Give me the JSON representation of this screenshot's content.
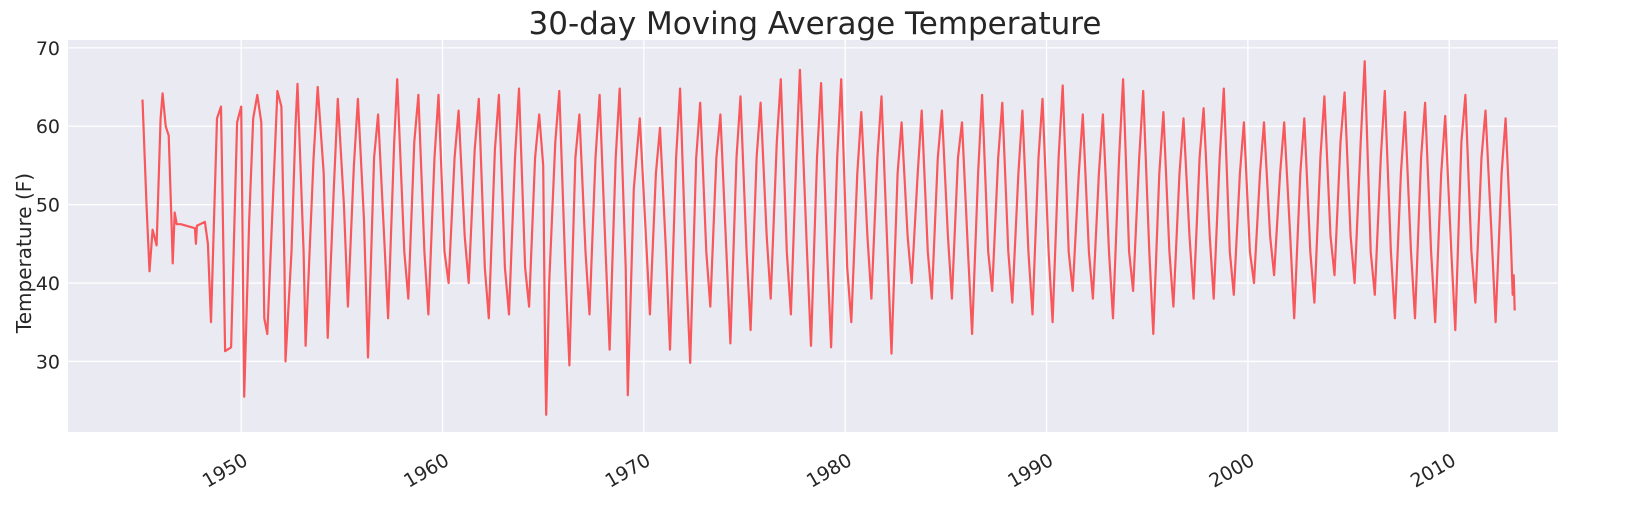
{
  "chart_data": {
    "type": "line",
    "title": "30-day Moving Average Temperature",
    "xlabel": "",
    "ylabel": "Temperature (F)",
    "xlim": [
      1941.4,
      2015.4
    ],
    "ylim": [
      21,
      71
    ],
    "x_ticks": [
      1950,
      1960,
      1970,
      1980,
      1990,
      2000,
      2010
    ],
    "x_tick_labels": [
      "1950",
      "1960",
      "1970",
      "1980",
      "1990",
      "2000",
      "2010"
    ],
    "y_ticks": [
      30,
      40,
      50,
      60,
      70
    ],
    "y_tick_labels": [
      "30",
      "40",
      "50",
      "60",
      "70"
    ],
    "grid": true,
    "background": "#eaeaf2",
    "line_color": "#f8585b",
    "series": [
      {
        "name": "",
        "points": [
          [
            1945.1,
            63.4
          ],
          [
            1945.3,
            50.0
          ],
          [
            1945.45,
            41.5
          ],
          [
            1945.6,
            46.8
          ],
          [
            1945.8,
            44.8
          ],
          [
            1946.0,
            61.0
          ],
          [
            1946.1,
            64.2
          ],
          [
            1946.25,
            60.0
          ],
          [
            1946.4,
            58.8
          ],
          [
            1946.55,
            47.0
          ],
          [
            1946.6,
            42.5
          ],
          [
            1946.7,
            49.0
          ],
          [
            1946.8,
            47.5
          ],
          [
            1947.0,
            47.5
          ],
          [
            1947.7,
            47.0
          ],
          [
            1947.75,
            45.0
          ],
          [
            1947.8,
            47.3
          ],
          [
            1948.2,
            47.8
          ],
          [
            1948.35,
            45.0
          ],
          [
            1948.5,
            35.0
          ],
          [
            1948.8,
            61.0
          ],
          [
            1949.0,
            62.5
          ],
          [
            1949.2,
            31.3
          ],
          [
            1949.5,
            31.8
          ],
          [
            1949.8,
            60.5
          ],
          [
            1950.0,
            62.5
          ],
          [
            1950.1,
            38.0
          ],
          [
            1950.15,
            25.5
          ],
          [
            1950.4,
            48.0
          ],
          [
            1950.6,
            61.0
          ],
          [
            1950.8,
            64.0
          ],
          [
            1951.0,
            60.5
          ],
          [
            1951.15,
            35.5
          ],
          [
            1951.3,
            33.5
          ],
          [
            1951.5,
            46.0
          ],
          [
            1951.8,
            64.5
          ],
          [
            1952.0,
            62.5
          ],
          [
            1952.15,
            42.0
          ],
          [
            1952.2,
            30.0
          ],
          [
            1952.5,
            44.0
          ],
          [
            1952.7,
            60.0
          ],
          [
            1952.8,
            65.4
          ],
          [
            1953.1,
            44.0
          ],
          [
            1953.2,
            32.0
          ],
          [
            1953.6,
            56.0
          ],
          [
            1953.8,
            65.0
          ],
          [
            1954.1,
            54.0
          ],
          [
            1954.3,
            33.0
          ],
          [
            1954.6,
            52.0
          ],
          [
            1954.8,
            63.5
          ],
          [
            1955.1,
            50.0
          ],
          [
            1955.3,
            37.0
          ],
          [
            1955.6,
            55.0
          ],
          [
            1955.8,
            63.5
          ],
          [
            1956.1,
            48.0
          ],
          [
            1956.3,
            30.5
          ],
          [
            1956.6,
            56.0
          ],
          [
            1956.8,
            61.5
          ],
          [
            1957.1,
            46.0
          ],
          [
            1957.3,
            35.5
          ],
          [
            1957.6,
            58.0
          ],
          [
            1957.75,
            66.0
          ],
          [
            1958.1,
            44.0
          ],
          [
            1958.3,
            38.0
          ],
          [
            1958.6,
            58.0
          ],
          [
            1958.8,
            64.0
          ],
          [
            1959.1,
            44.0
          ],
          [
            1959.3,
            36.0
          ],
          [
            1959.6,
            56.0
          ],
          [
            1959.8,
            64.0
          ],
          [
            1960.1,
            44.0
          ],
          [
            1960.3,
            40.0
          ],
          [
            1960.6,
            56.0
          ],
          [
            1960.8,
            62.0
          ],
          [
            1961.1,
            46.0
          ],
          [
            1961.3,
            40.0
          ],
          [
            1961.6,
            57.0
          ],
          [
            1961.8,
            63.5
          ],
          [
            1962.1,
            42.0
          ],
          [
            1962.3,
            35.5
          ],
          [
            1962.6,
            57.0
          ],
          [
            1962.8,
            64.0
          ],
          [
            1963.1,
            42.0
          ],
          [
            1963.3,
            36.0
          ],
          [
            1963.6,
            56.0
          ],
          [
            1963.8,
            64.8
          ],
          [
            1964.1,
            42.0
          ],
          [
            1964.3,
            37.0
          ],
          [
            1964.6,
            56.0
          ],
          [
            1964.8,
            61.5
          ],
          [
            1965.0,
            55.0
          ],
          [
            1965.1,
            30.0
          ],
          [
            1965.15,
            23.2
          ],
          [
            1965.3,
            40.0
          ],
          [
            1965.6,
            58.0
          ],
          [
            1965.8,
            64.5
          ],
          [
            1966.1,
            42.0
          ],
          [
            1966.3,
            29.5
          ],
          [
            1966.6,
            56.0
          ],
          [
            1966.8,
            61.5
          ],
          [
            1967.1,
            44.0
          ],
          [
            1967.3,
            36.0
          ],
          [
            1967.6,
            56.0
          ],
          [
            1967.8,
            64.0
          ],
          [
            1968.1,
            44.0
          ],
          [
            1968.3,
            31.5
          ],
          [
            1968.6,
            56.0
          ],
          [
            1968.8,
            64.8
          ],
          [
            1969.1,
            42.0
          ],
          [
            1969.2,
            25.7
          ],
          [
            1969.5,
            52.0
          ],
          [
            1969.8,
            61.0
          ],
          [
            1970.1,
            46.0
          ],
          [
            1970.3,
            36.0
          ],
          [
            1970.6,
            54.0
          ],
          [
            1970.8,
            59.8
          ],
          [
            1971.1,
            44.0
          ],
          [
            1971.3,
            31.5
          ],
          [
            1971.6,
            56.0
          ],
          [
            1971.8,
            64.8
          ],
          [
            1972.1,
            42.0
          ],
          [
            1972.3,
            29.8
          ],
          [
            1972.6,
            56.0
          ],
          [
            1972.8,
            63.0
          ],
          [
            1973.1,
            44.0
          ],
          [
            1973.3,
            37.0
          ],
          [
            1973.6,
            56.0
          ],
          [
            1973.8,
            61.5
          ],
          [
            1974.1,
            44.0
          ],
          [
            1974.3,
            32.3
          ],
          [
            1974.6,
            56.0
          ],
          [
            1974.8,
            63.8
          ],
          [
            1975.1,
            44.0
          ],
          [
            1975.3,
            34.0
          ],
          [
            1975.6,
            56.0
          ],
          [
            1975.8,
            63.0
          ],
          [
            1976.1,
            46.0
          ],
          [
            1976.3,
            38.0
          ],
          [
            1976.6,
            58.0
          ],
          [
            1976.8,
            66.0
          ],
          [
            1977.1,
            44.0
          ],
          [
            1977.3,
            36.0
          ],
          [
            1977.6,
            58.0
          ],
          [
            1977.75,
            67.2
          ],
          [
            1978.1,
            44.0
          ],
          [
            1978.3,
            32.0
          ],
          [
            1978.6,
            56.0
          ],
          [
            1978.8,
            65.5
          ],
          [
            1979.1,
            44.0
          ],
          [
            1979.3,
            31.8
          ],
          [
            1979.6,
            56.0
          ],
          [
            1979.8,
            66.0
          ],
          [
            1980.1,
            42.0
          ],
          [
            1980.3,
            35.0
          ],
          [
            1980.6,
            54.0
          ],
          [
            1980.8,
            61.8
          ],
          [
            1981.1,
            46.0
          ],
          [
            1981.3,
            38.0
          ],
          [
            1981.6,
            56.0
          ],
          [
            1981.8,
            63.8
          ],
          [
            1982.1,
            44.0
          ],
          [
            1982.3,
            31.0
          ],
          [
            1982.6,
            54.0
          ],
          [
            1982.8,
            60.5
          ],
          [
            1983.1,
            46.0
          ],
          [
            1983.3,
            40.0
          ],
          [
            1983.6,
            54.0
          ],
          [
            1983.8,
            62.0
          ],
          [
            1984.1,
            44.0
          ],
          [
            1984.3,
            38.0
          ],
          [
            1984.6,
            56.0
          ],
          [
            1984.8,
            62.0
          ],
          [
            1985.1,
            46.0
          ],
          [
            1985.3,
            38.0
          ],
          [
            1985.6,
            56.0
          ],
          [
            1985.8,
            60.5
          ],
          [
            1986.1,
            44.0
          ],
          [
            1986.3,
            33.5
          ],
          [
            1986.6,
            54.0
          ],
          [
            1986.8,
            64.0
          ],
          [
            1987.1,
            44.0
          ],
          [
            1987.3,
            39.0
          ],
          [
            1987.6,
            56.0
          ],
          [
            1987.8,
            63.0
          ],
          [
            1988.1,
            44.0
          ],
          [
            1988.3,
            37.5
          ],
          [
            1988.6,
            54.0
          ],
          [
            1988.8,
            62.0
          ],
          [
            1989.1,
            44.0
          ],
          [
            1989.3,
            36.0
          ],
          [
            1989.6,
            56.0
          ],
          [
            1989.8,
            63.5
          ],
          [
            1990.1,
            44.0
          ],
          [
            1990.3,
            35.0
          ],
          [
            1990.6,
            56.0
          ],
          [
            1990.8,
            65.2
          ],
          [
            1991.1,
            44.0
          ],
          [
            1991.3,
            39.0
          ],
          [
            1991.6,
            54.0
          ],
          [
            1991.8,
            61.5
          ],
          [
            1992.1,
            44.0
          ],
          [
            1992.3,
            38.0
          ],
          [
            1992.6,
            54.0
          ],
          [
            1992.8,
            61.5
          ],
          [
            1993.1,
            44.0
          ],
          [
            1993.3,
            35.5
          ],
          [
            1993.6,
            56.0
          ],
          [
            1993.8,
            66.0
          ],
          [
            1994.1,
            44.0
          ],
          [
            1994.3,
            39.0
          ],
          [
            1994.6,
            56.0
          ],
          [
            1994.8,
            64.5
          ],
          [
            1995.1,
            44.0
          ],
          [
            1995.3,
            33.5
          ],
          [
            1995.6,
            54.0
          ],
          [
            1995.8,
            61.8
          ],
          [
            1996.1,
            44.0
          ],
          [
            1996.3,
            37.0
          ],
          [
            1996.6,
            54.0
          ],
          [
            1996.8,
            61.0
          ],
          [
            1997.1,
            46.0
          ],
          [
            1997.3,
            38.0
          ],
          [
            1997.6,
            56.0
          ],
          [
            1997.8,
            62.3
          ],
          [
            1998.1,
            46.0
          ],
          [
            1998.3,
            38.0
          ],
          [
            1998.6,
            56.0
          ],
          [
            1998.8,
            64.8
          ],
          [
            1999.1,
            44.0
          ],
          [
            1999.3,
            38.5
          ],
          [
            1999.6,
            54.0
          ],
          [
            1999.8,
            60.5
          ],
          [
            2000.1,
            44.0
          ],
          [
            2000.3,
            40.0
          ],
          [
            2000.6,
            54.0
          ],
          [
            2000.8,
            60.5
          ],
          [
            2001.1,
            46.0
          ],
          [
            2001.3,
            41.0
          ],
          [
            2001.6,
            54.0
          ],
          [
            2001.8,
            60.5
          ],
          [
            2002.1,
            46.0
          ],
          [
            2002.3,
            35.5
          ],
          [
            2002.6,
            54.0
          ],
          [
            2002.8,
            61.0
          ],
          [
            2003.1,
            44.0
          ],
          [
            2003.3,
            37.5
          ],
          [
            2003.6,
            56.0
          ],
          [
            2003.8,
            63.8
          ],
          [
            2004.1,
            46.0
          ],
          [
            2004.3,
            41.0
          ],
          [
            2004.6,
            58.0
          ],
          [
            2004.8,
            64.3
          ],
          [
            2005.1,
            46.0
          ],
          [
            2005.3,
            40.0
          ],
          [
            2005.6,
            58.0
          ],
          [
            2005.8,
            68.3
          ],
          [
            2006.1,
            44.0
          ],
          [
            2006.3,
            38.5
          ],
          [
            2006.6,
            56.0
          ],
          [
            2006.8,
            64.5
          ],
          [
            2007.1,
            44.0
          ],
          [
            2007.3,
            35.5
          ],
          [
            2007.6,
            54.0
          ],
          [
            2007.8,
            61.8
          ],
          [
            2008.1,
            44.0
          ],
          [
            2008.3,
            35.5
          ],
          [
            2008.6,
            56.0
          ],
          [
            2008.8,
            63.0
          ],
          [
            2009.1,
            44.0
          ],
          [
            2009.3,
            35.0
          ],
          [
            2009.6,
            54.0
          ],
          [
            2009.8,
            61.3
          ],
          [
            2010.1,
            44.0
          ],
          [
            2010.3,
            34.0
          ],
          [
            2010.6,
            58.0
          ],
          [
            2010.8,
            64.0
          ],
          [
            2011.1,
            44.0
          ],
          [
            2011.3,
            37.5
          ],
          [
            2011.6,
            56.0
          ],
          [
            2011.8,
            62.0
          ],
          [
            2012.1,
            46.0
          ],
          [
            2012.3,
            35.0
          ],
          [
            2012.6,
            54.0
          ],
          [
            2012.8,
            61.0
          ],
          [
            2013.05,
            46.0
          ],
          [
            2013.15,
            38.5
          ],
          [
            2013.2,
            41.0
          ],
          [
            2013.25,
            36.5
          ]
        ]
      }
    ]
  }
}
